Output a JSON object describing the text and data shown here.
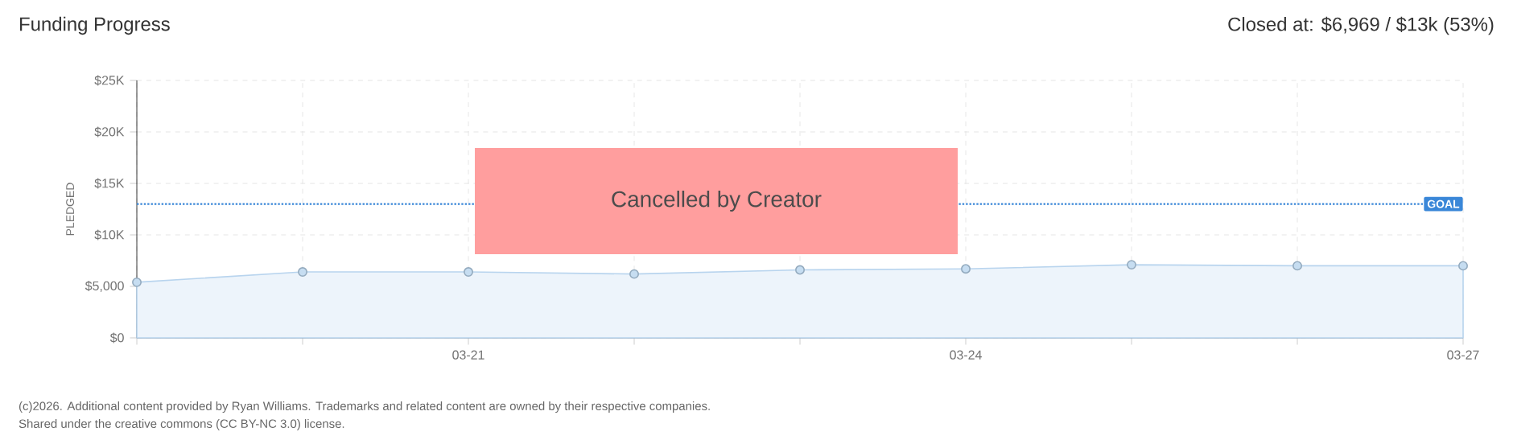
{
  "chart_data": {
    "type": "area",
    "title": "Funding Progress",
    "subtitle": "Closed at: $6,969 / $13k (53%)",
    "ylabel": "PLEDGED",
    "categories": [
      null,
      null,
      "03-21",
      null,
      null,
      "03-24",
      null,
      null,
      "03-27"
    ],
    "series": [
      {
        "color": "#b8d4ee",
        "values": [
          5400,
          6400,
          6400,
          6200,
          6600,
          6700,
          7100,
          7000,
          7000
        ]
      }
    ],
    "ylim": [
      0,
      25000
    ],
    "yticks": [
      {
        "value": 0,
        "label": "$0"
      },
      {
        "value": 5000,
        "label": "$5,000"
      },
      {
        "value": 10000,
        "label": "$10K"
      },
      {
        "value": 15000,
        "label": "$15K"
      },
      {
        "value": 20000,
        "label": "$20K"
      },
      {
        "value": 25000,
        "label": "$25K"
      }
    ],
    "ref_lines": [
      {
        "axis": "y",
        "value": 13000,
        "label": "GOAL",
        "color": "#3a87d8",
        "line_style": "dotted"
      }
    ],
    "annotations": [
      "Cancelled by Creator",
      "(c)2026. Additional content provided by Ryan Williams. Trademarks and related content are owned by their respective companies.",
      "Shared under the creative commons (CC BY-NC 3.0) license."
    ],
    "grid": true,
    "marker": "circle"
  }
}
